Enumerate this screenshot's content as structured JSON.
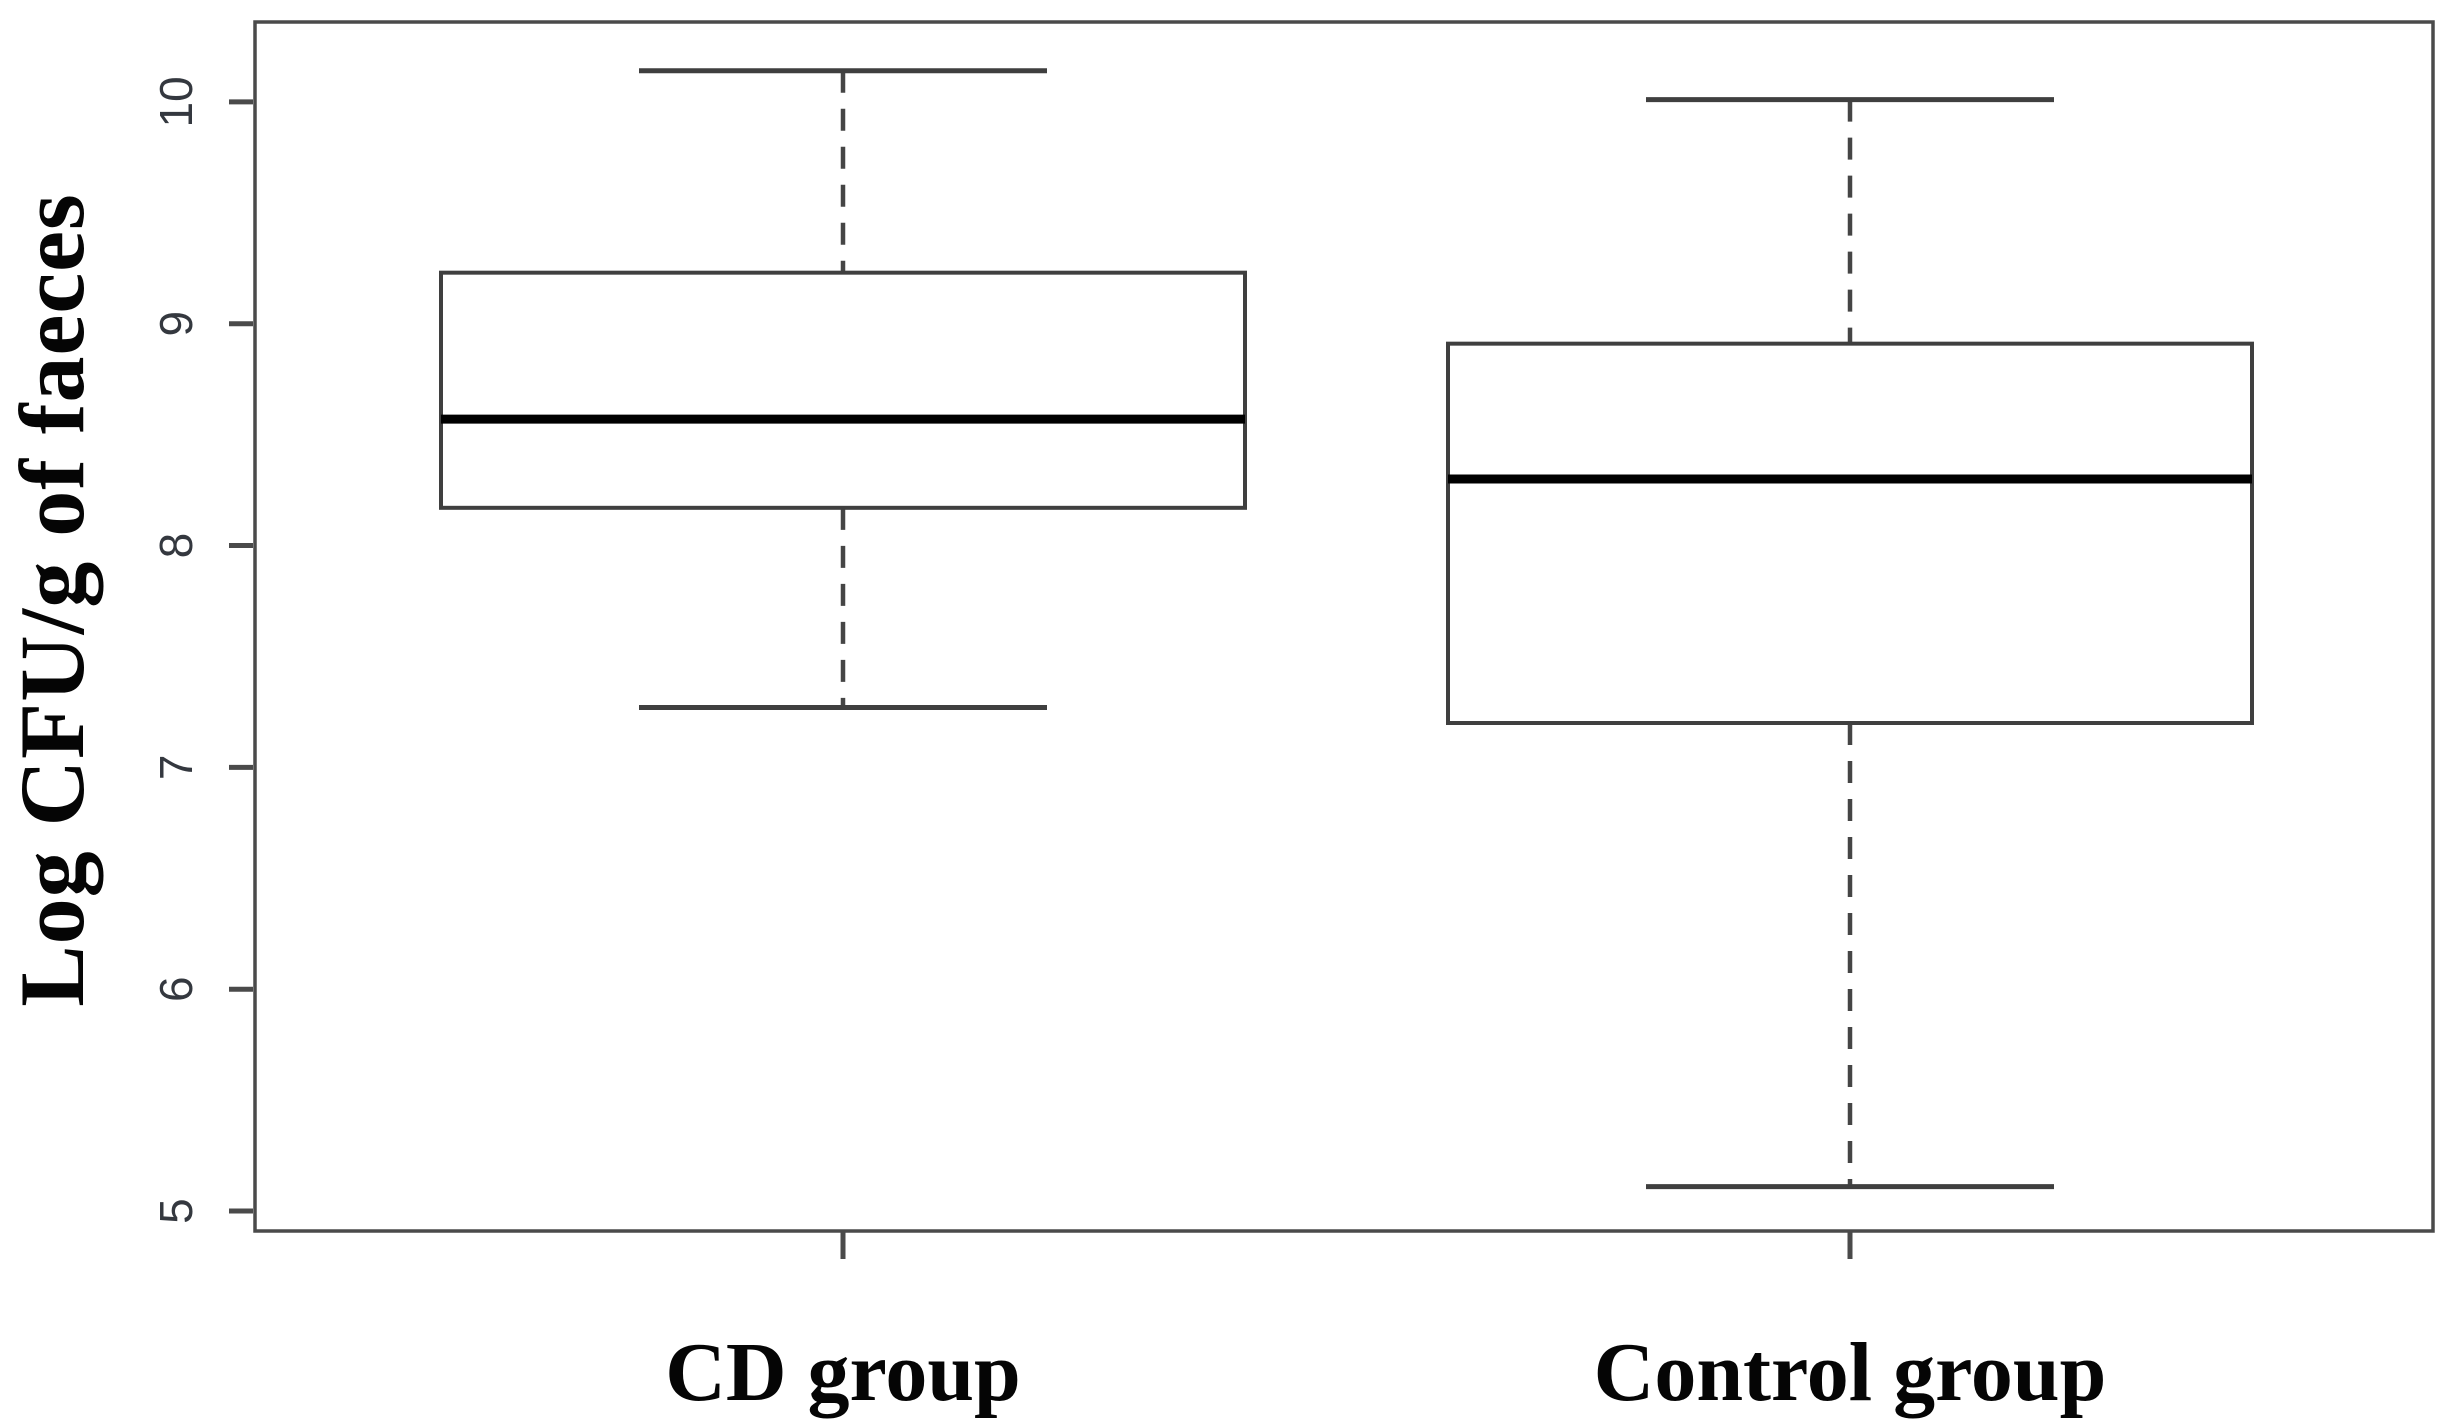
{
  "figure": {
    "background": "#ffffff",
    "frame_color": "#4a4a4a",
    "box_line_color": "#3f3f3f",
    "median_color": "#000000",
    "whisker_color": "#454545",
    "tick_label_color": "#34383f",
    "category_label_color": "#050505"
  },
  "chart_data": {
    "type": "boxplot",
    "title": "",
    "xlabel": "",
    "ylabel": "Log CFU/g of faeces",
    "categories": [
      "CD group",
      "Control group"
    ],
    "y_ticks": [
      5,
      6,
      7,
      8,
      9,
      10
    ],
    "y_tick_labels": [
      "5",
      "6",
      "7",
      "8",
      "9",
      "10"
    ],
    "ylim": [
      4.91,
      10.36
    ],
    "grid": false,
    "legend": "none",
    "orientation": "vertical",
    "series": [
      {
        "name": "CD group",
        "whisker_low": 7.27,
        "q1": 8.17,
        "median": 8.57,
        "q3": 9.23,
        "whisker_high": 10.14,
        "outliers": []
      },
      {
        "name": "Control group",
        "whisker_low": 5.11,
        "q1": 7.2,
        "median": 8.3,
        "q3": 8.91,
        "whisker_high": 10.01,
        "outliers": []
      }
    ]
  }
}
